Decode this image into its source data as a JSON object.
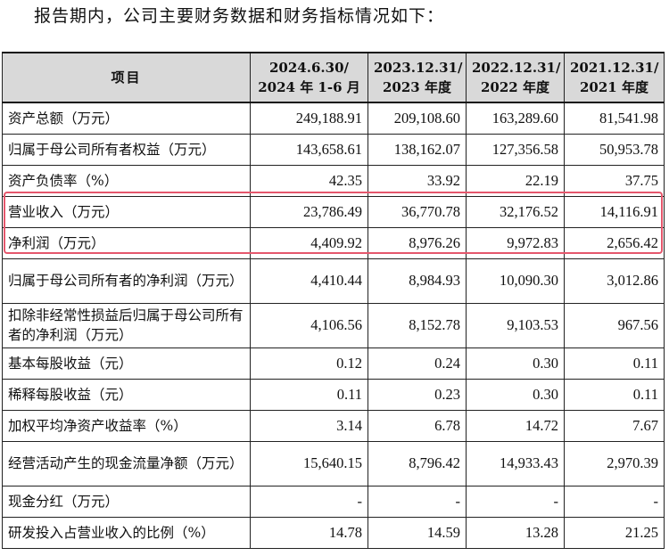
{
  "intro_text": "报告期内，公司主要财务数据和财务指标情况如下：",
  "table": {
    "header": {
      "item": "项目",
      "periods": [
        {
          "line1": "2024.6.30/",
          "line2": "2024 年 1-6 月"
        },
        {
          "line1": "2023.12.31/",
          "line2": "2023 年度"
        },
        {
          "line1": "2022.12.31/",
          "line2": "2022 年度"
        },
        {
          "line1": "2021.12.31/",
          "line2": "2021 年度"
        }
      ]
    },
    "rows": [
      {
        "label": "资产总额（万元）",
        "values": [
          "249,188.91",
          "209,108.60",
          "163,289.60",
          "81,541.98"
        ]
      },
      {
        "label": "归属于母公司所有者权益（万元）",
        "values": [
          "143,658.61",
          "138,162.07",
          "127,356.58",
          "50,953.78"
        ]
      },
      {
        "label": "资产负债率（%）",
        "values": [
          "42.35",
          "33.92",
          "22.19",
          "37.75"
        ]
      },
      {
        "label": "营业收入（万元）",
        "values": [
          "23,786.49",
          "36,770.78",
          "32,176.52",
          "14,116.91"
        ],
        "highlighted": true
      },
      {
        "label": "净利润（万元）",
        "values": [
          "4,409.92",
          "8,976.26",
          "9,972.83",
          "2,656.42"
        ],
        "highlighted": true
      },
      {
        "label": "归属于母公司所有者的净利润（万元）",
        "values": [
          "4,410.44",
          "8,984.93",
          "10,090.30",
          "3,012.86"
        ]
      },
      {
        "label": "扣除非经常性损益后归属于母公司所有者的净利润（万元）",
        "values": [
          "4,106.56",
          "8,152.78",
          "9,103.53",
          "967.56"
        ]
      },
      {
        "label": "基本每股收益（元）",
        "values": [
          "0.12",
          "0.24",
          "0.30",
          "0.11"
        ]
      },
      {
        "label": "稀释每股收益（元）",
        "values": [
          "0.11",
          "0.23",
          "0.30",
          "0.11"
        ]
      },
      {
        "label": "加权平均净资产收益率（%）",
        "values": [
          "3.14",
          "6.78",
          "14.72",
          "7.67"
        ]
      },
      {
        "label": "经营活动产生的现金流量净额（万元）",
        "values": [
          "15,640.15",
          "8,796.42",
          "14,933.43",
          "2,970.39"
        ]
      },
      {
        "label": "现金分红（万元）",
        "values": [
          "-",
          "-",
          "-",
          "-"
        ]
      },
      {
        "label": "研发投入占营业收入的比例（%）",
        "values": [
          "14.78",
          "14.59",
          "13.28",
          "21.25"
        ]
      }
    ]
  },
  "highlight_color": "#e5576c",
  "header_bg": "#d9d9d9"
}
